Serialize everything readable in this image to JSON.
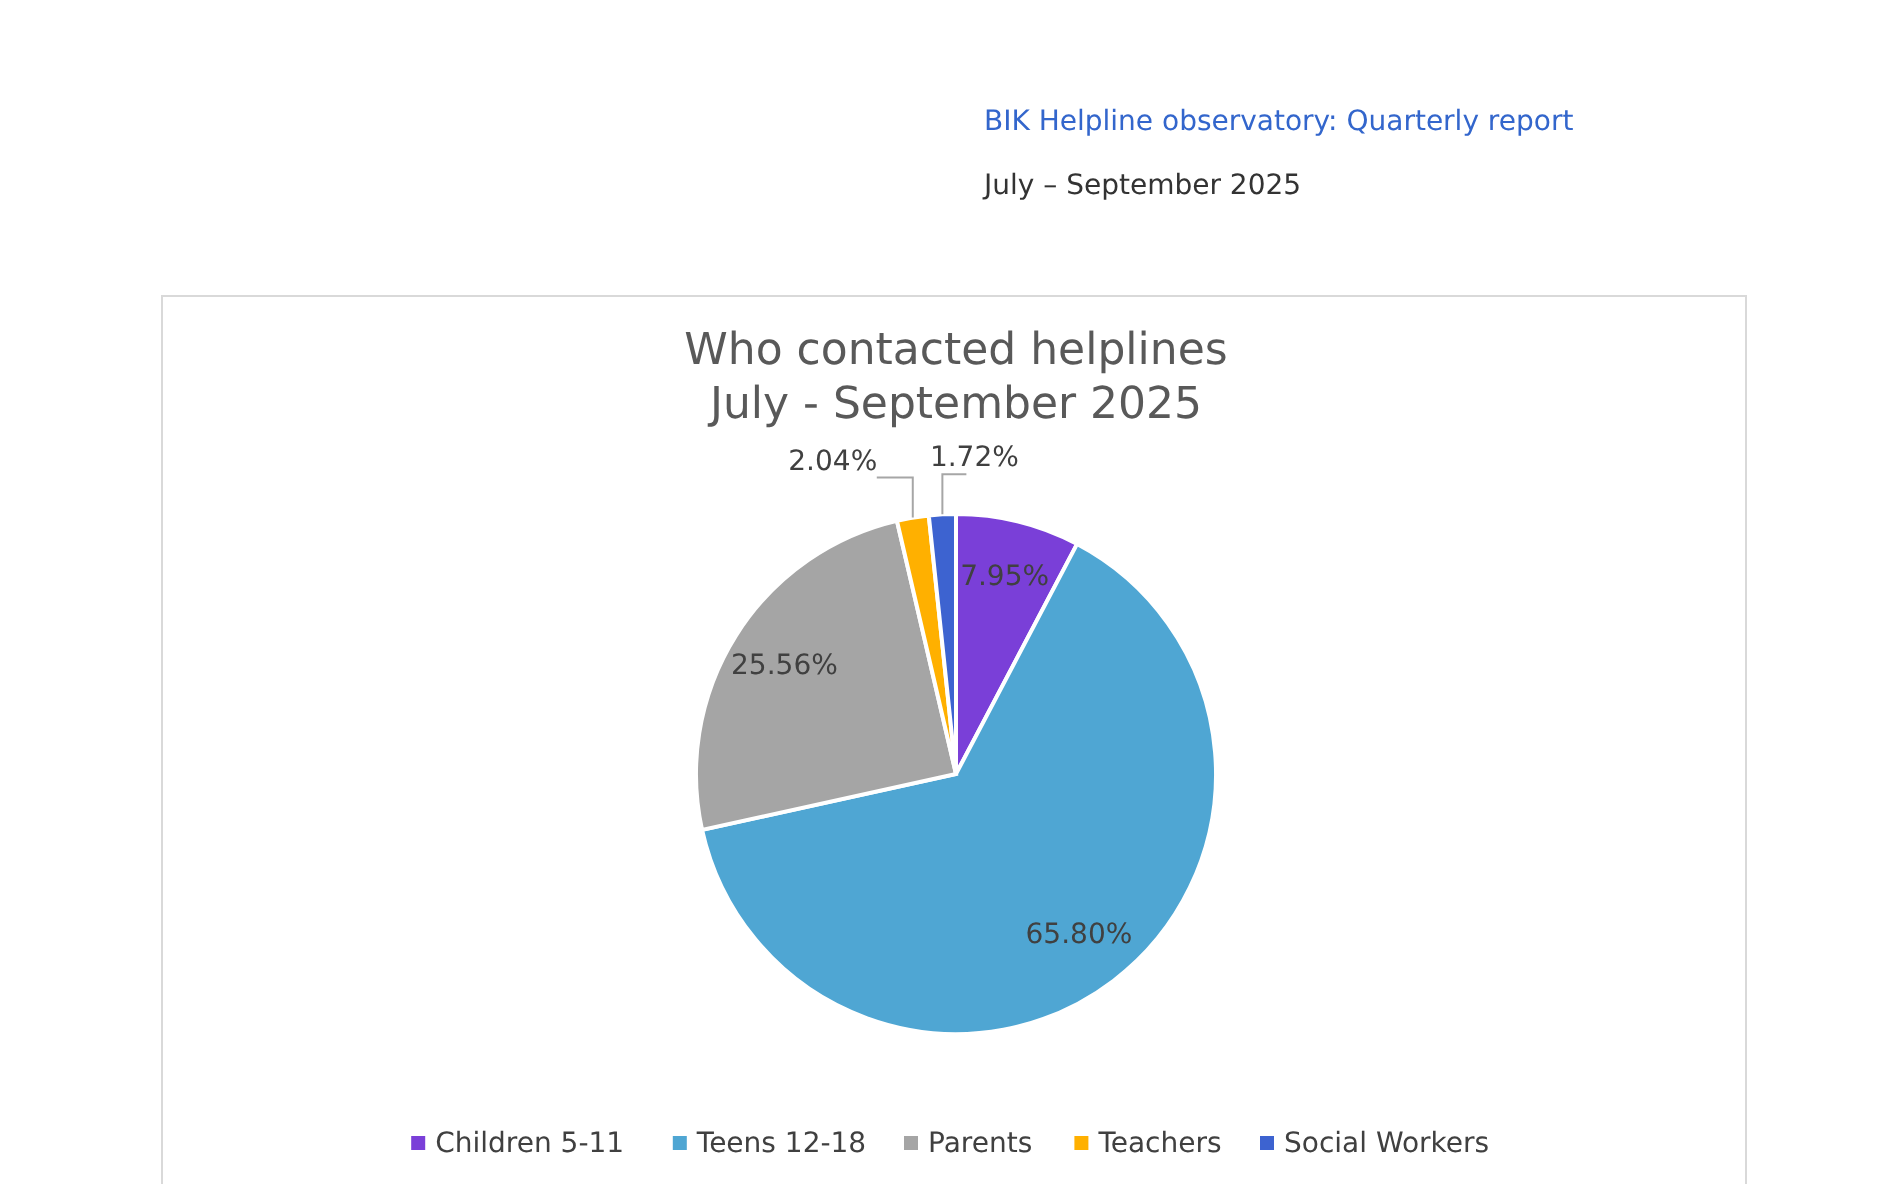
{
  "chart_data": {
    "type": "pie",
    "title": "Who contacted helplines\nJuly - September 2025",
    "categories": [
      "Children 5-11",
      "Teens 12-18",
      "Parents",
      "Teachers",
      "Social Workers"
    ],
    "values": [
      7.95,
      65.8,
      25.56,
      2.04,
      1.72
    ],
    "colors": [
      "#7a3fd8",
      "#4fa6d3",
      "#a5a5a5",
      "#ffb000",
      "#3d63d0"
    ],
    "value_labels": [
      "7.95%",
      "65.80%",
      "25.56%",
      "2.04%",
      "1.72%"
    ],
    "legend": "bottom",
    "annotations": [
      "BIK Helpline observatory: Quarterly report",
      "July – September 2025"
    ]
  }
}
